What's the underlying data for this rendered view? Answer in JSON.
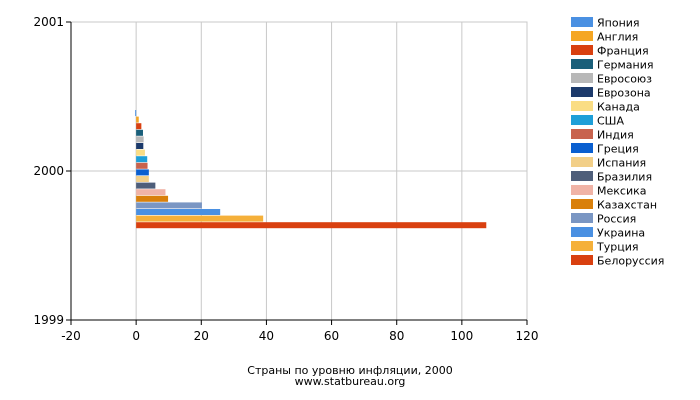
{
  "chart_data": {
    "type": "bar",
    "orientation": "horizontal",
    "category_axis": {
      "ticks": [
        "2001",
        "2000",
        "1999"
      ]
    },
    "xlim": [
      -20,
      120
    ],
    "x_ticks": [
      -20,
      0,
      20,
      40,
      60,
      80,
      100,
      120
    ],
    "grid": true,
    "legend_position": "right",
    "caption_line1": "Страны по уровню инфляции, 2000",
    "caption_line2": "www.statbureau.org",
    "series": [
      {
        "name": "Япония",
        "value": -0.3,
        "color": "#4a90e2"
      },
      {
        "name": "Англия",
        "value": 0.8,
        "color": "#f5a623"
      },
      {
        "name": "Франция",
        "value": 1.6,
        "color": "#d94010"
      },
      {
        "name": "Германия",
        "value": 2.1,
        "color": "#1a5f7a"
      },
      {
        "name": "Евросоюз",
        "value": 2.3,
        "color": "#b8b8b8"
      },
      {
        "name": "Еврозона",
        "value": 2.2,
        "color": "#1c3a6b"
      },
      {
        "name": "Канада",
        "value": 2.7,
        "color": "#fadd84"
      },
      {
        "name": "США",
        "value": 3.4,
        "color": "#1e9fd8"
      },
      {
        "name": "Индия",
        "value": 3.5,
        "color": "#c8634e"
      },
      {
        "name": "Греция",
        "value": 3.9,
        "color": "#0a5fd0"
      },
      {
        "name": "Испания",
        "value": 3.9,
        "color": "#f2cf88"
      },
      {
        "name": "Бразилия",
        "value": 5.9,
        "color": "#4e5e7a"
      },
      {
        "name": "Мексика",
        "value": 9.0,
        "color": "#f0b3a6"
      },
      {
        "name": "Казахстан",
        "value": 9.8,
        "color": "#d9800b"
      },
      {
        "name": "Россия",
        "value": 20.2,
        "color": "#7a96c3"
      },
      {
        "name": "Украина",
        "value": 25.8,
        "color": "#4a90e2"
      },
      {
        "name": "Турция",
        "value": 39.0,
        "color": "#f5b03a"
      },
      {
        "name": "Белоруссия",
        "value": 107.5,
        "color": "#d94010"
      }
    ]
  }
}
